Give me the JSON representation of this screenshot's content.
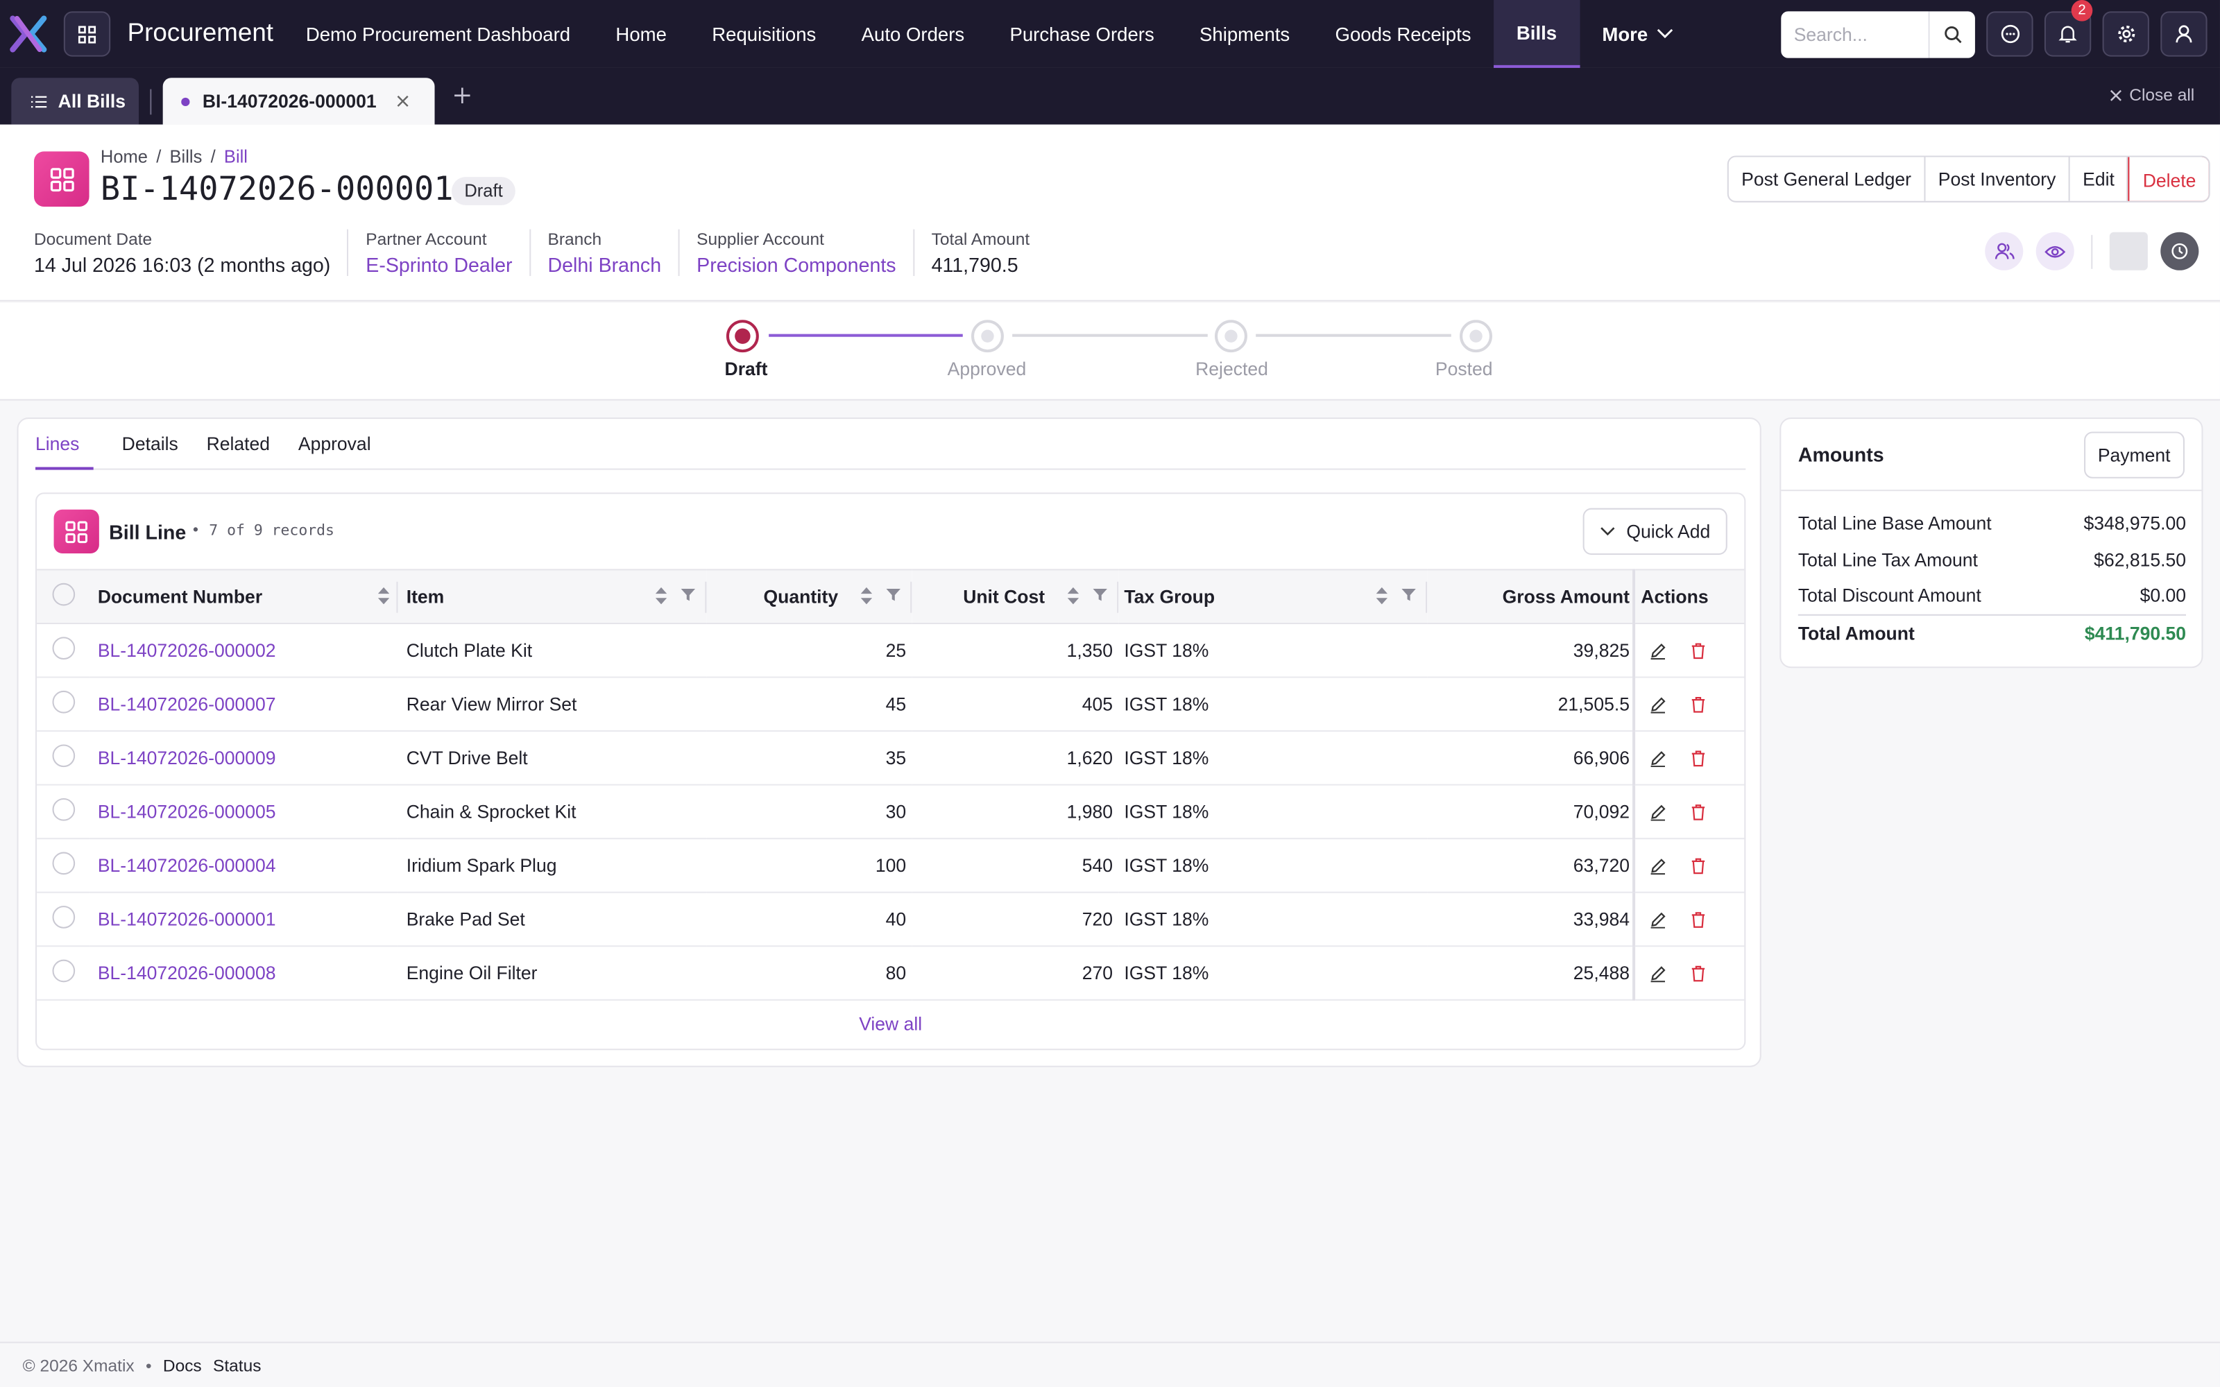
{
  "app": {
    "title": "Procurement",
    "search_placeholder": "Search...",
    "notification_count": "2"
  },
  "nav": {
    "items": [
      {
        "label": "Demo Procurement Dashboard"
      },
      {
        "label": "Home"
      },
      {
        "label": "Requisitions"
      },
      {
        "label": "Auto Orders"
      },
      {
        "label": "Purchase Orders"
      },
      {
        "label": "Shipments"
      },
      {
        "label": "Goods Receipts"
      },
      {
        "label": "Bills"
      },
      {
        "label": "More"
      }
    ],
    "active": "Bills"
  },
  "tabs": {
    "all_label": "All Bills",
    "current_label": "BI-14072026-000001",
    "close_all": "Close all"
  },
  "header": {
    "breadcrumb": [
      "Home",
      "Bills",
      "Bill"
    ],
    "title": "BI-14072026-000001",
    "status": "Draft",
    "actions": [
      "Post General Ledger",
      "Post Inventory",
      "Edit",
      "Delete"
    ],
    "fields": [
      {
        "label": "Document Date",
        "value": "14 Jul 2026 16:03 (2 months ago)"
      },
      {
        "label": "Partner Account",
        "value": "E-Sprinto Dealer"
      },
      {
        "label": "Branch",
        "value": "Delhi Branch"
      },
      {
        "label": "Supplier Account",
        "value": "Precision Components"
      },
      {
        "label": "Total Amount",
        "value": "411,790.5"
      }
    ]
  },
  "progress": {
    "steps": [
      "Draft",
      "Approved",
      "Rejected",
      "Posted"
    ],
    "current": 0
  },
  "main": {
    "tabs": [
      "Lines",
      "Details",
      "Related",
      "Approval"
    ],
    "card_title": "Bill Line",
    "card_count": "• 7 of 9 records",
    "quick_add": "Quick Add",
    "columns": [
      "Document Number",
      "Item",
      "Quantity",
      "Unit Cost",
      "Tax Group",
      "Gross Amount",
      "Actions"
    ],
    "rows": [
      {
        "doc": "BL-14072026-000002",
        "item": "Clutch Plate Kit",
        "qty": "25",
        "cost": "1,350",
        "tax": "IGST 18%",
        "gross": "39,825"
      },
      {
        "doc": "BL-14072026-000007",
        "item": "Rear View Mirror Set",
        "qty": "45",
        "cost": "405",
        "tax": "IGST 18%",
        "gross": "21,505.5"
      },
      {
        "doc": "BL-14072026-000009",
        "item": "CVT Drive Belt",
        "qty": "35",
        "cost": "1,620",
        "tax": "IGST 18%",
        "gross": "66,906"
      },
      {
        "doc": "BL-14072026-000005",
        "item": "Chain & Sprocket Kit",
        "qty": "30",
        "cost": "1,980",
        "tax": "IGST 18%",
        "gross": "70,092"
      },
      {
        "doc": "BL-14072026-000004",
        "item": "Iridium Spark Plug",
        "qty": "100",
        "cost": "540",
        "tax": "IGST 18%",
        "gross": "63,720"
      },
      {
        "doc": "BL-14072026-000001",
        "item": "Brake Pad Set",
        "qty": "40",
        "cost": "720",
        "tax": "IGST 18%",
        "gross": "33,984"
      },
      {
        "doc": "BL-14072026-000008",
        "item": "Engine Oil Filter",
        "qty": "80",
        "cost": "270",
        "tax": "IGST 18%",
        "gross": "25,488"
      }
    ],
    "view_all": "View all"
  },
  "amounts": {
    "title": "Amounts",
    "payment": "Payment",
    "rows": [
      {
        "label": "Total Line Base Amount",
        "value": "$348,975.00"
      },
      {
        "label": "Total Line Tax Amount",
        "value": "$62,815.50"
      },
      {
        "label": "Total Discount Amount",
        "value": "$0.00"
      },
      {
        "label": "Total Amount",
        "value": "$411,790.50"
      }
    ]
  },
  "footer": {
    "copyright": "© 2026 Xmatix",
    "links": [
      "Docs",
      "Status"
    ]
  },
  "colors": {
    "accent": "#7d42c4",
    "brand_pink": "#e13b93",
    "danger": "#d93040",
    "success": "#2e8a52",
    "nav_bg": "#1d1a2e"
  }
}
